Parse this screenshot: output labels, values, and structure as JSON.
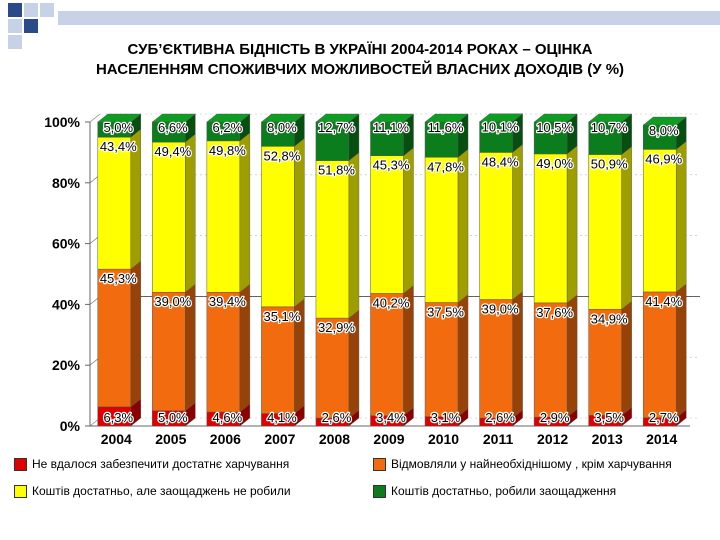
{
  "colors": {
    "accent_dark": "#2a4a8a",
    "accent_light": "#c8d2e6",
    "red": "#e00000",
    "orange": "#f26b0f",
    "yellow": "#ffff00",
    "green": "#0b7d1c"
  },
  "chart_data": {
    "type": "bar",
    "stacked": true,
    "title_line1": "СУБ’ЄКТИВНА БІДНІСТЬ В УКРАЇНІ 2004-2014 РОКАХ – ОЦІНКА",
    "title_line2": "НАСЕЛЕННЯМ СПОЖИВЧИХ МОЖЛИВОСТЕЙ ВЛАСНИХ ДОХОДІВ (У %)",
    "categories": [
      "2004",
      "2005",
      "2006",
      "2007",
      "2008",
      "2009",
      "2010",
      "2011",
      "2012",
      "2013",
      "2014"
    ],
    "ylim": [
      0,
      100
    ],
    "yticks": [
      "0%",
      "20%",
      "40%",
      "60%",
      "80%",
      "100%"
    ],
    "grid": false,
    "legend_position": "bottom",
    "series": [
      {
        "name": "Не вдалося забезпечити достатнє харчування",
        "color": "#e00000",
        "values": [
          6.3,
          5.0,
          4.6,
          4.1,
          2.6,
          3.4,
          3.1,
          2.6,
          2.9,
          3.5,
          2.7
        ],
        "labels": [
          "6,3%",
          "5,0%",
          "4,6%",
          "4,1%",
          "2,6%",
          "3,4%",
          "3,1%",
          "2,6%",
          "2,9%",
          "3,5%",
          "2,7%"
        ]
      },
      {
        "name": "Відмовляли у найнеобхіднішому , крім харчування",
        "color": "#f26b0f",
        "values": [
          45.3,
          39.0,
          39.4,
          35.1,
          32.9,
          40.2,
          37.5,
          39.0,
          37.6,
          34.9,
          41.4
        ],
        "labels": [
          "45,3%",
          "39,0%",
          "39,4%",
          "35,1%",
          "32,9%",
          "40,2%",
          "37,5%",
          "39,0%",
          "37,6%",
          "34,9%",
          "41,4%"
        ]
      },
      {
        "name": "Коштів достатньо, але заощаджень не робили",
        "color": "#ffff00",
        "values": [
          43.4,
          49.4,
          49.8,
          52.8,
          51.8,
          45.3,
          47.8,
          48.4,
          49.0,
          50.9,
          46.9
        ],
        "labels": [
          "43,4%",
          "49,4%",
          "49,8%",
          "52,8%",
          "51,8%",
          "45,3%",
          "47,8%",
          "48,4%",
          "49,0%",
          "50,9%",
          "46,9%"
        ]
      },
      {
        "name": "Коштів достатньо, робили заощадження",
        "color": "#0b7d1c",
        "values": [
          5.0,
          6.6,
          6.2,
          8.0,
          12.7,
          11.1,
          11.6,
          10.1,
          10.5,
          10.7,
          8.0
        ],
        "labels": [
          "5,0%",
          "6,6%",
          "6,2%",
          "8,0%",
          "12,7%",
          "11,1%",
          "11,6%",
          "10,1%",
          "10,5%",
          "10,7%",
          "8,0%"
        ]
      }
    ]
  }
}
